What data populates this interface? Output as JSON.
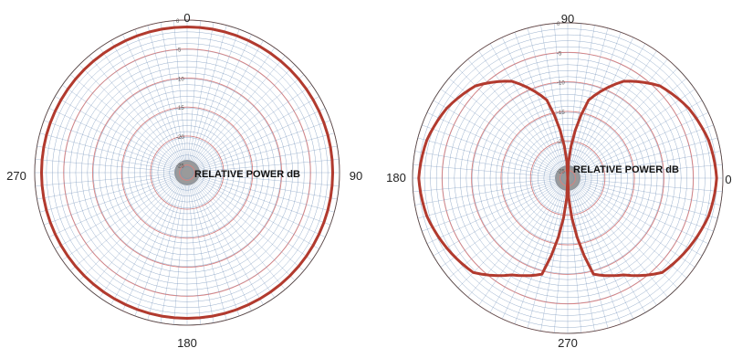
{
  "chart_data": [
    {
      "type": "polar",
      "center_label": "RELATIVE POWER dB",
      "angle_labels": {
        "top": "0",
        "right": "90",
        "bottom": "180",
        "left": "270"
      },
      "radial_scale_db": [
        0,
        -5,
        -10,
        -15,
        -20,
        -25
      ],
      "radial_tick_labels": [
        "0",
        "-5",
        "-10",
        "-15",
        "-20",
        "-25"
      ],
      "series": [
        {
          "pattern": "omnidirectional",
          "angle_deg": [
            0,
            30,
            60,
            90,
            120,
            150,
            180,
            210,
            240,
            270,
            300,
            330
          ],
          "relative_power_db": [
            0,
            0,
            0,
            0,
            0,
            0,
            0,
            0,
            0,
            0,
            0,
            0
          ]
        }
      ],
      "colors": {
        "pattern": "#b23a2e",
        "grid_red": "#d98080",
        "grid_blue": "#6f8fb8"
      }
    },
    {
      "type": "polar",
      "center_label": "RELATIVE POWER dB",
      "angle_labels": {
        "top": "90",
        "right": "0",
        "bottom": "270",
        "left": "180"
      },
      "radial_scale_db": [
        0,
        -5,
        -10,
        -15,
        -20,
        -25
      ],
      "radial_tick_labels": [
        "0",
        "-5",
        "-10",
        "-15",
        "-20",
        "-25"
      ],
      "series": [
        {
          "pattern": "figure-eight",
          "angle_deg": [
            0,
            15,
            30,
            45,
            60,
            75,
            90,
            105,
            120,
            135,
            150,
            165,
            180,
            195,
            210,
            225,
            240,
            255,
            270,
            285,
            300,
            315,
            330,
            345
          ],
          "relative_power_db": [
            -1,
            -1.5,
            -2.5,
            -4,
            -7,
            -12,
            -25,
            -12,
            -7,
            -4,
            -2.5,
            -1.5,
            -1,
            -1.5,
            -2.5,
            -3.5,
            -7,
            -9,
            -25,
            -9,
            -7,
            -3.5,
            -2.5,
            -1.5
          ]
        }
      ],
      "colors": {
        "pattern": "#b23a2e",
        "grid_red": "#d98080",
        "grid_blue": "#6f8fb8"
      }
    }
  ]
}
